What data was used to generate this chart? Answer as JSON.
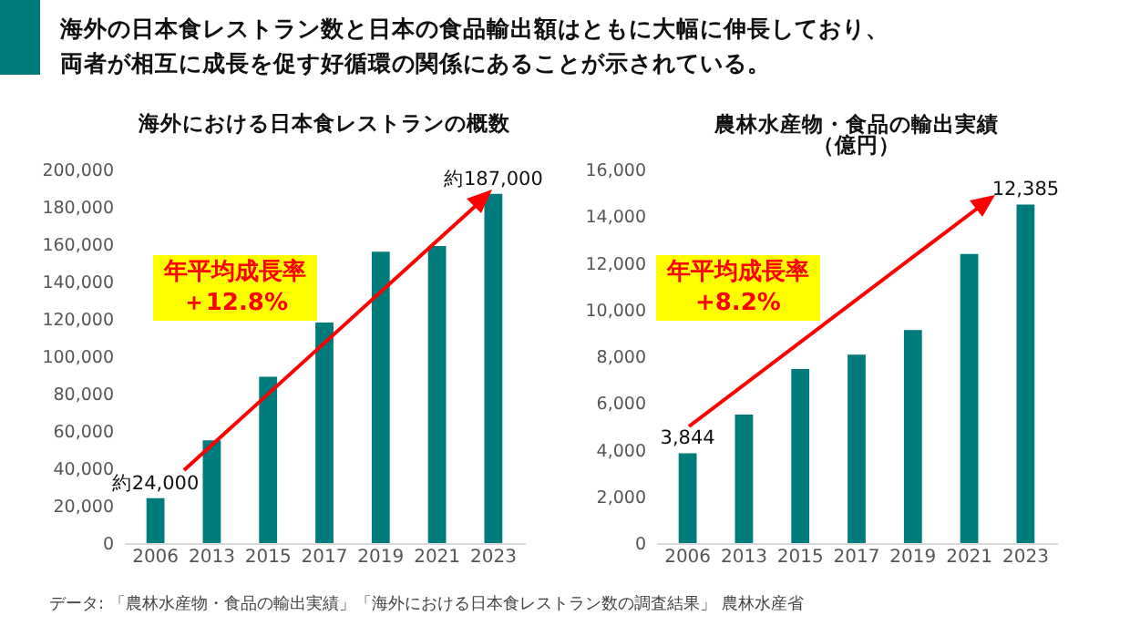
{
  "chart_data": [
    {
      "type": "bar",
      "title": "海外における日本食レストランの概数",
      "categories": [
        "2006",
        "2013",
        "2015",
        "2017",
        "2019",
        "2021",
        "2023"
      ],
      "values": [
        24000,
        55000,
        89000,
        118000,
        156000,
        159000,
        187000
      ],
      "color": "#007b7b",
      "ylim": [
        0,
        200000
      ],
      "yticks": [
        0,
        {
          "value": 20000,
          "label": "20,000"
        },
        {
          "value": 40000,
          "label": "40,000"
        },
        {
          "value": 60000,
          "label": "60,000"
        },
        {
          "value": 80000,
          "label": "80,000"
        },
        {
          "value": 100000,
          "label": "100,000"
        },
        {
          "value": 120000,
          "label": "120,000"
        },
        {
          "value": 140000,
          "label": "140,000"
        },
        {
          "value": 160000,
          "label": "160,000"
        },
        {
          "value": 180000,
          "label": "180,000"
        },
        {
          "value": 200000,
          "label": "200,000"
        }
      ],
      "grid": false,
      "annotations": [
        "海外の日本食レストラン数と日本の食品輸出額はともに大幅に伸長しており、両者が相互に成長を促す好循環の関係にあることが示されている。",
        "年平均成長率＋12.8%",
        {
          "text": "約24,000",
          "x": "2006",
          "y": 24000
        },
        {
          "text": "約187,000",
          "x": "2023",
          "y": 187000
        }
      ]
    },
    {
      "type": "bar",
      "title": "農林水産物・食品の輸出実績",
      "subtitle": "（億円）",
      "categories": [
        "2006",
        "2013",
        "2015",
        "2017",
        "2019",
        "2021",
        "2023"
      ],
      "values": [
        3844,
        5500,
        7450,
        8070,
        9120,
        12385,
        14500
      ],
      "color": "#007b7b",
      "ylim": [
        0,
        16000
      ],
      "yticks": [
        0,
        {
          "value": 2000,
          "label": "2,000"
        },
        {
          "value": 4000,
          "label": "4,000"
        },
        {
          "value": 6000,
          "label": "6,000"
        },
        {
          "value": 8000,
          "label": "8,000"
        },
        {
          "value": 10000,
          "label": "10,000"
        },
        {
          "value": 12000,
          "label": "12,000"
        },
        {
          "value": 14000,
          "label": "14,000"
        },
        {
          "value": 16000,
          "label": "16,000"
        }
      ],
      "grid": false,
      "annotations": [
        "年平均成長率+8.2%",
        {
          "text": "3,844",
          "x": "2006",
          "y": 3844
        },
        {
          "text": "12,385",
          "x": "2023",
          "y": 14500
        },
        "データ: 「農林水産物・食品の輸出実績」「海外における日本食レストラン数の調査結果」 農林水産省"
      ]
    }
  ]
}
